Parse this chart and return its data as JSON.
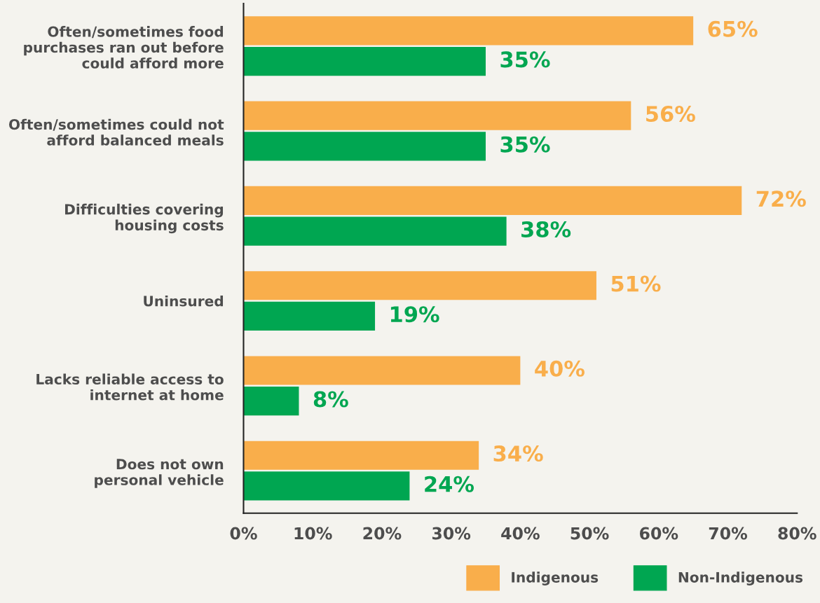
{
  "chart_data": {
    "type": "bar",
    "orientation": "horizontal",
    "categories": [
      "Often/sometimes food\npurchases ran out before\ncould afford more",
      "Often/sometimes could not\nafford balanced meals",
      "Difficulties covering\nhousing costs",
      "Uninsured",
      "Lacks reliable access to\ninternet at home",
      "Does not own\npersonal vehicle"
    ],
    "series": [
      {
        "name": "Indigenous",
        "color": "#f9ae4b",
        "values": [
          65,
          56,
          72,
          51,
          40,
          34
        ],
        "value_labels": [
          "65%",
          "56%",
          "72%",
          "51%",
          "40%",
          "34%"
        ]
      },
      {
        "name": "Non-Indigenous",
        "color": "#00a651",
        "values": [
          35,
          35,
          38,
          19,
          8,
          24
        ],
        "value_labels": [
          "35%",
          "35%",
          "38%",
          "19%",
          "8%",
          "24%"
        ]
      }
    ],
    "xlim": [
      0,
      80
    ],
    "xticks": [
      {
        "value": 0,
        "label": "0%"
      },
      {
        "value": 10,
        "label": "10%"
      },
      {
        "value": 20,
        "label": "20%"
      },
      {
        "value": 30,
        "label": "30%"
      },
      {
        "value": 40,
        "label": "40%"
      },
      {
        "value": 50,
        "label": "50%"
      },
      {
        "value": 60,
        "label": "60%"
      },
      {
        "value": 70,
        "label": "70%"
      },
      {
        "value": 80,
        "label": "80%"
      }
    ],
    "grid": false,
    "legend": "bottom right"
  }
}
